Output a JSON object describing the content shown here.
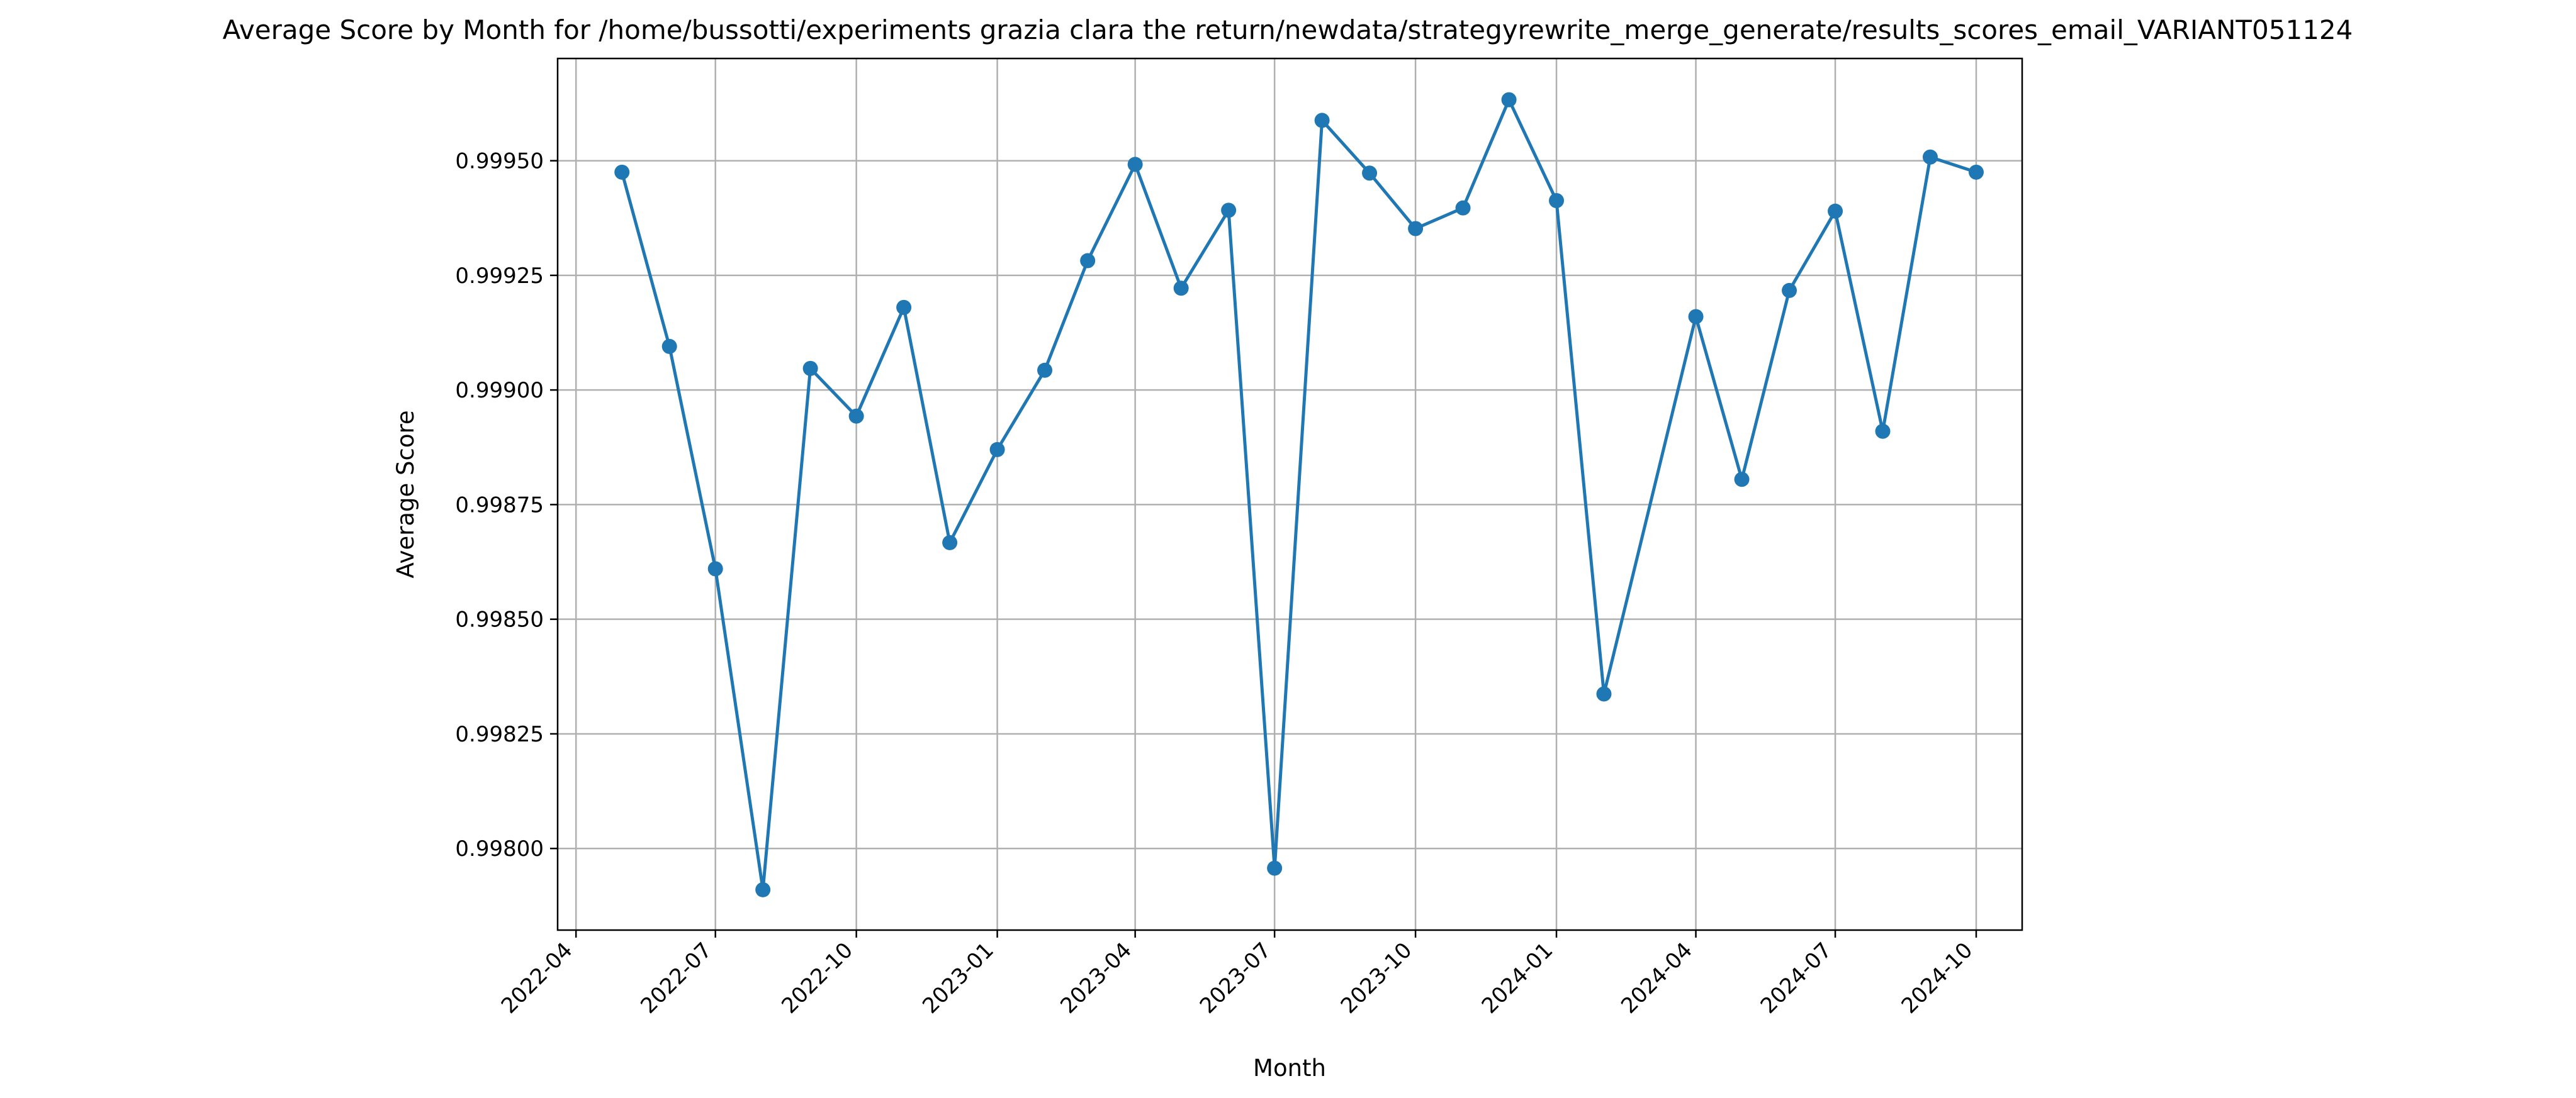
{
  "chart_data": {
    "type": "line",
    "title": "Average Score by Month for /home/bussotti/experiments grazia clara the return/newdata/strategyrewrite_merge_generate/results_scores_email_VARIANT051124",
    "xlabel": "Month",
    "ylabel": "Average Score",
    "grid": true,
    "legend": "none",
    "marker": "circle",
    "line_color": "#1f77b4",
    "xlim": [
      "2022-03-20",
      "2024-10-31"
    ],
    "ylim": [
      0.99782,
      0.99572
    ],
    "x_ticks": [
      "2022-04",
      "2022-07",
      "2022-10",
      "2023-01",
      "2023-04",
      "2023-07",
      "2023-10",
      "2024-01",
      "2024-04",
      "2024-07",
      "2024-10"
    ],
    "y_ticks": [
      0.998,
      0.99825,
      0.9985,
      0.99875,
      0.999,
      0.99925,
      0.9995
    ],
    "y_tick_labels": [
      "0.99800",
      "0.99825",
      "0.99850",
      "0.99875",
      "0.99900",
      "0.99925",
      "0.99950"
    ],
    "x": [
      "2022-05-01",
      "2022-06-01",
      "2022-07-01",
      "2022-08-01",
      "2022-09-01",
      "2022-10-01",
      "2022-11-01",
      "2022-12-01",
      "2023-01-01",
      "2023-02-01",
      "2023-03-01",
      "2023-04-01",
      "2023-05-01",
      "2023-06-01",
      "2023-07-01",
      "2023-08-01",
      "2023-09-01",
      "2023-10-01",
      "2023-11-01",
      "2023-12-01",
      "2024-01-01",
      "2024-02-01",
      "2024-04-01",
      "2024-05-01",
      "2024-06-01",
      "2024-07-01",
      "2024-08-01",
      "2024-09-01",
      "2024-10-01"
    ],
    "values": [
      0.999475,
      0.999095,
      0.99861,
      0.99791,
      0.999047,
      0.998943,
      0.99918,
      0.998667,
      0.99887,
      0.999043,
      0.999282,
      0.999492,
      0.999222,
      0.999392,
      0.997957,
      0.999588,
      0.999473,
      0.999352,
      0.999397,
      0.999633,
      0.999413,
      0.998337,
      0.99916,
      0.998805,
      0.999217,
      0.99939,
      0.99891,
      0.999508,
      0.999475
    ]
  }
}
